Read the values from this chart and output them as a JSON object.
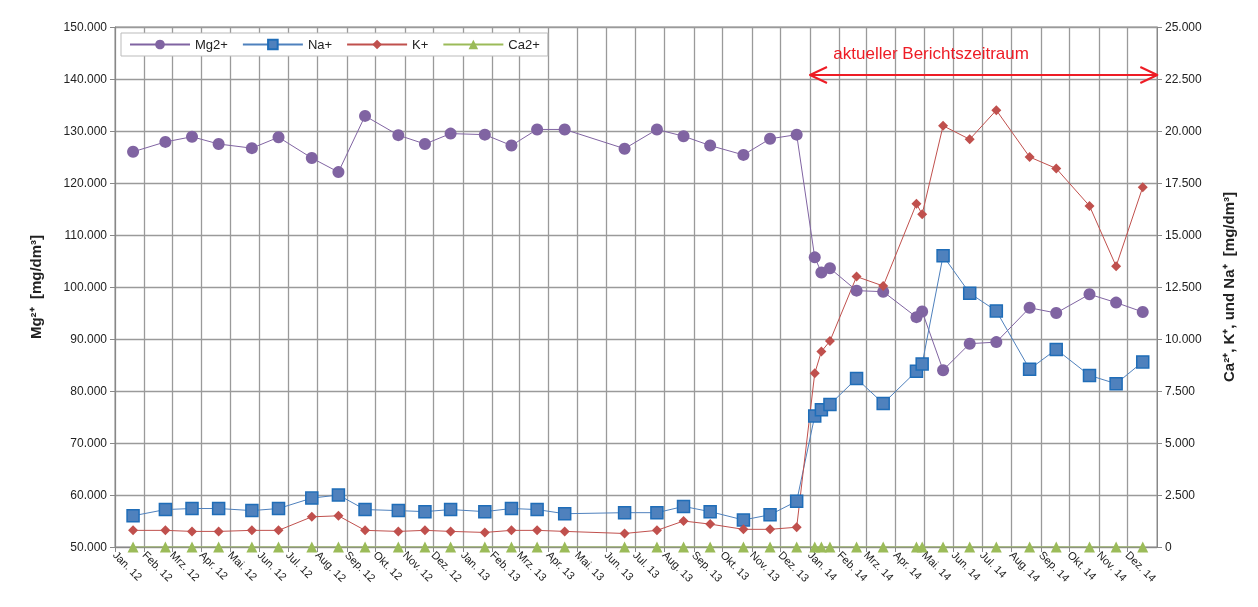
{
  "chart_data": {
    "type": "line",
    "ylabel": "Mg²⁺  [mg/dm³]",
    "y2label": "Ca²⁺, K⁺, und Na⁺  [mg/dm³]",
    "x": [
      "2012-01-20",
      "2012-02-23",
      "2012-03-22",
      "2012-04-19",
      "2012-05-24",
      "2012-06-21",
      "2012-07-26",
      "2012-08-23",
      "2012-09-20",
      "2012-10-25",
      "2012-11-22",
      "2012-12-19",
      "2013-01-24",
      "2013-02-21",
      "2013-03-20",
      "2013-04-18",
      "2013-06-20",
      "2013-07-24",
      "2013-08-21",
      "2013-09-18",
      "2013-10-23",
      "2013-11-20",
      "2013-12-18",
      "2014-01-06",
      "2014-01-13",
      "2014-01-22",
      "2014-02-19",
      "2014-03-19",
      "2014-04-23",
      "2014-04-29",
      "2014-05-21",
      "2014-06-18",
      "2014-07-16",
      "2014-08-20",
      "2014-09-17",
      "2014-10-22",
      "2014-11-19",
      "2014-12-17"
    ],
    "series": [
      {
        "name": "Mg2+",
        "color": "#8064a2",
        "marker": "circle",
        "values": [
          126000,
          127900,
          128900,
          127500,
          126700,
          128800,
          124800,
          122100,
          132900,
          129200,
          127500,
          129500,
          129300,
          127200,
          130300,
          130300,
          126600,
          130300,
          129000,
          127200,
          125400,
          128500,
          129300,
          105700,
          102800,
          103600,
          99300,
          99100,
          94200,
          95300,
          84000,
          89100,
          89400,
          96000,
          95000,
          98600,
          97000,
          95200
        ]
      },
      {
        "name": "Na+",
        "color": "#4f81bd",
        "marker": "square",
        "axis": "y2",
        "values": [
          1500,
          1800,
          1850,
          1850,
          1750,
          1850,
          2350,
          2500,
          1800,
          1750,
          1700,
          1800,
          1700,
          1850,
          1800,
          1600,
          1650,
          1650,
          1950,
          1700,
          1300,
          1550,
          2200,
          6300,
          6600,
          6850,
          8100,
          6900,
          8450,
          8800,
          14000,
          12200,
          11350,
          8550,
          9500,
          8250,
          7850,
          8900
        ]
      },
      {
        "name": "K+",
        "color": "#c0504d",
        "marker": "diamond",
        "axis": "y2",
        "values": [
          800,
          800,
          750,
          750,
          800,
          800,
          1450,
          1500,
          800,
          750,
          800,
          750,
          700,
          800,
          800,
          750,
          650,
          800,
          1250,
          1100,
          850,
          850,
          950,
          8350,
          9400,
          9900,
          13000,
          12550,
          16500,
          16000,
          20250,
          19600,
          21000,
          18750,
          18200,
          16400,
          13500,
          17300
        ]
      },
      {
        "name": "Ca2+",
        "color": "#9bbb59",
        "marker": "triangle",
        "axis": "y2",
        "values": [
          0,
          0,
          0,
          0,
          0,
          0,
          0,
          0,
          0,
          0,
          0,
          0,
          0,
          0,
          0,
          0,
          0,
          0,
          0,
          0,
          0,
          0,
          0,
          0,
          0,
          0,
          0,
          0,
          0,
          0,
          0,
          0,
          0,
          0,
          0,
          0,
          0,
          0
        ]
      }
    ],
    "xlim": [
      "2012-01-01",
      "2015-01-01"
    ],
    "xticks": [
      {
        "value": "2012-01",
        "label": "Jan. 12"
      },
      {
        "value": "2012-02",
        "label": "Feb. 12"
      },
      {
        "value": "2012-03",
        "label": "Mrz. 12"
      },
      {
        "value": "2012-04",
        "label": "Apr. 12"
      },
      {
        "value": "2012-05",
        "label": "Mai. 12"
      },
      {
        "value": "2012-06",
        "label": "Jun. 12"
      },
      {
        "value": "2012-07",
        "label": "Jul. 12"
      },
      {
        "value": "2012-08",
        "label": "Aug. 12"
      },
      {
        "value": "2012-09",
        "label": "Sep. 12"
      },
      {
        "value": "2012-10",
        "label": "Okt. 12"
      },
      {
        "value": "2012-11",
        "label": "Nov. 12"
      },
      {
        "value": "2012-12",
        "label": "Dez. 12"
      },
      {
        "value": "2013-01",
        "label": "Jan. 13"
      },
      {
        "value": "2013-02",
        "label": "Feb. 13"
      },
      {
        "value": "2013-03",
        "label": "Mrz. 13"
      },
      {
        "value": "2013-04",
        "label": "Apr. 13"
      },
      {
        "value": "2013-05",
        "label": "Mai. 13"
      },
      {
        "value": "2013-06",
        "label": "Jun. 13"
      },
      {
        "value": "2013-07",
        "label": "Jul. 13"
      },
      {
        "value": "2013-08",
        "label": "Aug. 13"
      },
      {
        "value": "2013-09",
        "label": "Sep. 13"
      },
      {
        "value": "2013-10",
        "label": "Okt. 13"
      },
      {
        "value": "2013-11",
        "label": "Nov. 13"
      },
      {
        "value": "2013-12",
        "label": "Dez. 13"
      },
      {
        "value": "2014-01",
        "label": "Jan. 14"
      },
      {
        "value": "2014-02",
        "label": "Feb. 14"
      },
      {
        "value": "2014-03",
        "label": "Mrz. 14"
      },
      {
        "value": "2014-04",
        "label": "Apr. 14"
      },
      {
        "value": "2014-05",
        "label": "Mai. 14"
      },
      {
        "value": "2014-06",
        "label": "Jun. 14"
      },
      {
        "value": "2014-07",
        "label": "Jul. 14"
      },
      {
        "value": "2014-08",
        "label": "Aug. 14"
      },
      {
        "value": "2014-09",
        "label": "Sep. 14"
      },
      {
        "value": "2014-10",
        "label": "Okt. 14"
      },
      {
        "value": "2014-11",
        "label": "Nov. 14"
      },
      {
        "value": "2014-12",
        "label": "Dez. 14"
      }
    ],
    "ylim": [
      50000,
      150000
    ],
    "yticks": [
      {
        "value": 50000,
        "label": "50.000"
      },
      {
        "value": 60000,
        "label": "60.000"
      },
      {
        "value": 70000,
        "label": "70.000"
      },
      {
        "value": 80000,
        "label": "80.000"
      },
      {
        "value": 90000,
        "label": "90.000"
      },
      {
        "value": 100000,
        "label": "100.000"
      },
      {
        "value": 110000,
        "label": "110.000"
      },
      {
        "value": 120000,
        "label": "120.000"
      },
      {
        "value": 130000,
        "label": "130.000"
      },
      {
        "value": 140000,
        "label": "140.000"
      },
      {
        "value": 150000,
        "label": "150.000"
      }
    ],
    "y2lim": [
      0,
      25000
    ],
    "y2ticks": [
      0,
      {
        "value": 2500,
        "label": "2.500"
      },
      {
        "value": 5000,
        "label": "5.000"
      },
      {
        "value": 7500,
        "label": "7.500"
      },
      {
        "value": 10000,
        "label": "10.000"
      },
      {
        "value": 12500,
        "label": "12.500"
      },
      {
        "value": 15000,
        "label": "15.000"
      },
      {
        "value": 17500,
        "label": "17.500"
      },
      {
        "value": 20000,
        "label": "20.000"
      },
      {
        "value": 22500,
        "label": "22.500"
      },
      {
        "value": 25000,
        "label": "25.000"
      }
    ],
    "annotations": [
      "aktueller Berichtszeitraum"
    ],
    "grid": true,
    "legend": "top left",
    "line_style": "solid"
  }
}
